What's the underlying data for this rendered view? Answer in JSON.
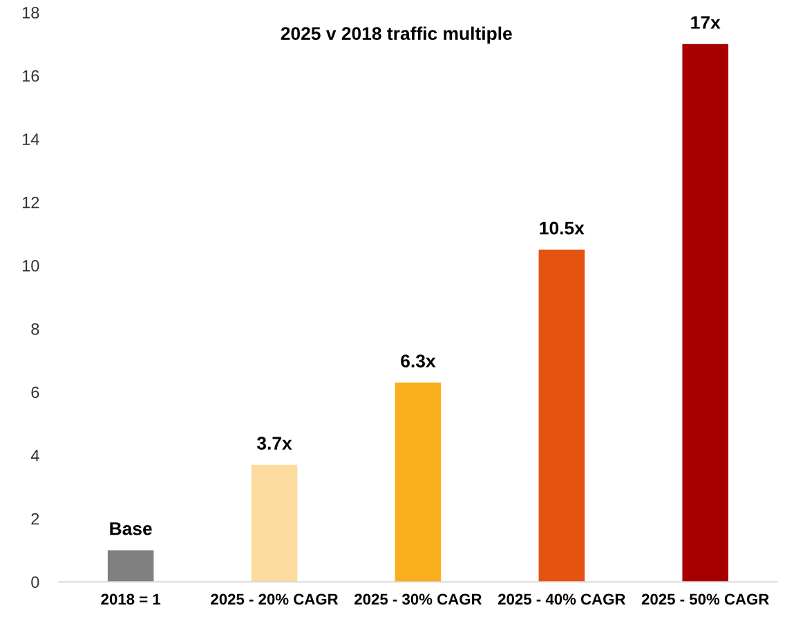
{
  "chart_data": {
    "type": "bar",
    "title": "2025 v 2018 traffic multiple",
    "categories": [
      "2018 = 1",
      "2025 - 20% CAGR",
      "2025 - 30% CAGR",
      "2025 - 40% CAGR",
      "2025 - 50% CAGR"
    ],
    "values": [
      1,
      3.7,
      6.3,
      10.5,
      17
    ],
    "colors": [
      "#808080",
      "#fbdc9e",
      "#f9ae1b",
      "#e4530f",
      "#a80000"
    ],
    "value_labels": [
      "Base",
      "3.7x",
      "6.3x",
      "10.5x",
      "17x"
    ],
    "ylim": [
      0,
      18
    ],
    "yticks": [
      0,
      2,
      4,
      6,
      8,
      10,
      12,
      14,
      16,
      18
    ],
    "grid": false
  }
}
